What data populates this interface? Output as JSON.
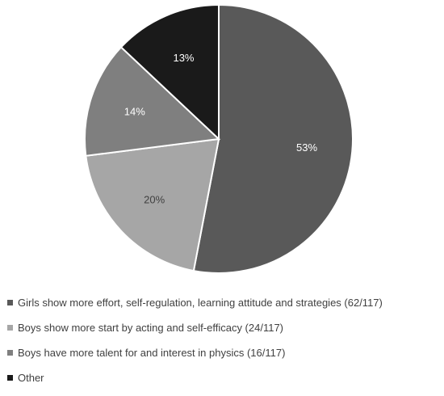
{
  "chart_data": {
    "type": "pie",
    "slices": [
      {
        "label": "Girls show more effort, self-regulation, learning attitude and strategies (62/117)",
        "value": 53,
        "display": "53%",
        "color": "#595959",
        "text_color": "#ffffff"
      },
      {
        "label": "Boys show more start by acting and self-efficacy (24/117)",
        "value": 20,
        "display": "20%",
        "color": "#a6a6a6",
        "text_color": "#404040"
      },
      {
        "label": "Boys have more talent for and interest in physics (16/117)",
        "value": 14,
        "display": "14%",
        "color": "#7f7f7f",
        "text_color": "#ffffff"
      },
      {
        "label": "Other",
        "value": 13,
        "display": "13%",
        "color": "#1a1a1a",
        "text_color": "#ffffff"
      }
    ],
    "start_angle": "12 o'clock",
    "direction": "clockwise",
    "legend_position": "bottom"
  }
}
